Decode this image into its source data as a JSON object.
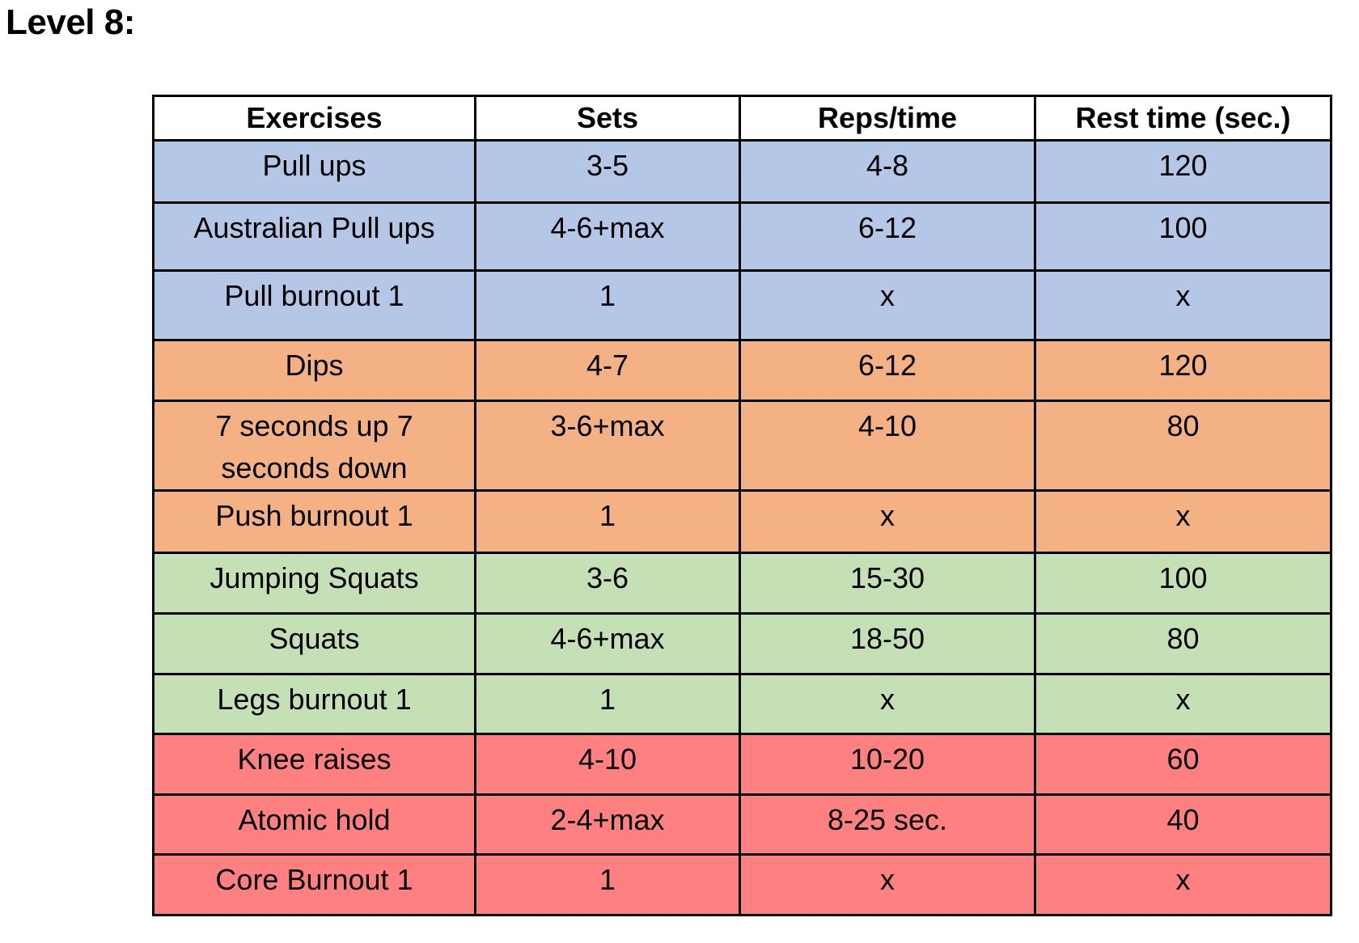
{
  "title": "Level 8:",
  "colors": {
    "pull": "#b4c7e7",
    "push": "#f4b183",
    "legs": "#c5e0b4",
    "core": "#ff8080",
    "border": "#000000"
  },
  "table": {
    "headers": [
      "Exercises",
      "Sets",
      "Reps/time",
      "Rest time (sec.)"
    ],
    "rows": [
      {
        "group": "pull",
        "cells": [
          "Pull ups",
          "3-5",
          "4-8",
          "120"
        ]
      },
      {
        "group": "pull",
        "cells": [
          "Australian Pull ups",
          "4-6+max",
          "6-12",
          "100"
        ]
      },
      {
        "group": "pull",
        "cells": [
          "Pull burnout 1",
          "1",
          "x",
          "x"
        ]
      },
      {
        "group": "push",
        "cells": [
          "Dips",
          "4-7",
          "6-12",
          "120"
        ]
      },
      {
        "group": "push",
        "cells": [
          "7 seconds up 7 seconds down",
          "3-6+max",
          "4-10",
          "80"
        ]
      },
      {
        "group": "push",
        "cells": [
          "Push burnout 1",
          "1",
          "x",
          "x"
        ]
      },
      {
        "group": "legs",
        "cells": [
          "Jumping Squats",
          "3-6",
          "15-30",
          "100"
        ]
      },
      {
        "group": "legs",
        "cells": [
          "Squats",
          "4-6+max",
          "18-50",
          "80"
        ]
      },
      {
        "group": "legs",
        "cells": [
          "Legs burnout 1",
          "1",
          "x",
          "x"
        ]
      },
      {
        "group": "core",
        "cells": [
          "Knee raises",
          "4-10",
          "10-20",
          "60"
        ]
      },
      {
        "group": "core",
        "cells": [
          "Atomic hold",
          "2-4+max",
          "8-25 sec.",
          "40"
        ]
      },
      {
        "group": "core",
        "cells": [
          "Core Burnout 1",
          "1",
          "x",
          "x"
        ]
      }
    ]
  }
}
